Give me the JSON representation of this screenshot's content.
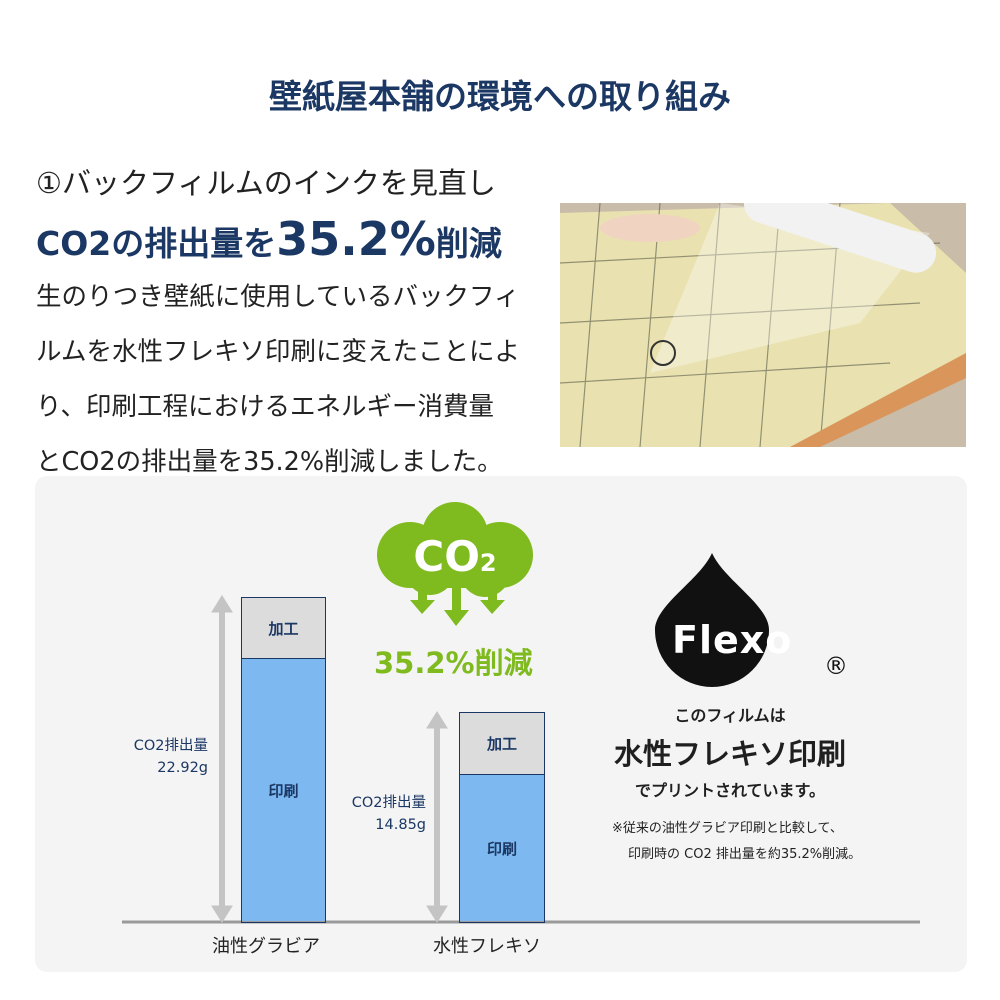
{
  "title": "壁紙屋本舗の環境への取り組み",
  "heading": {
    "line1": "①バックフィルムのインクを見直し",
    "line2_pre": "CO2の排出量を",
    "line2_big": "35.2%",
    "line2_post": "削減"
  },
  "body": [
    "生のりつき壁紙に使用しているバックフィ",
    "ルムを水性フレキソ印刷に変えたことによ",
    "り、印刷工程におけるエネルギー消費量",
    "とCO2の排出量を35.2%削減しました。"
  ],
  "cloud": {
    "label": "CO",
    "sub": "2",
    "reduction": "35.2%削減",
    "color": "#7fba1e"
  },
  "chart_data": {
    "type": "bar",
    "stacked": true,
    "categories": [
      "油性グラビア",
      "水性フレキソ"
    ],
    "segment_labels": [
      "印刷",
      "加工"
    ],
    "totals": [
      22.92,
      14.85
    ],
    "total_labels": [
      {
        "label": "CO2排出量",
        "value": "22.92g"
      },
      {
        "label": "CO2排出量",
        "value": "14.85g"
      }
    ],
    "colors": {
      "印刷": "#7db8f0",
      "加工": "#dcdcdc"
    }
  },
  "flexo": {
    "logo": "Flexo",
    "registered": "®",
    "line1": "このフィルムは",
    "line2": "水性フレキソ印刷",
    "line3": "でプリントされています。",
    "note1": "※従来の油性グラビア印刷と比較して、",
    "note2": "印刷時の CO2 排出量を約35.2%削減。"
  }
}
